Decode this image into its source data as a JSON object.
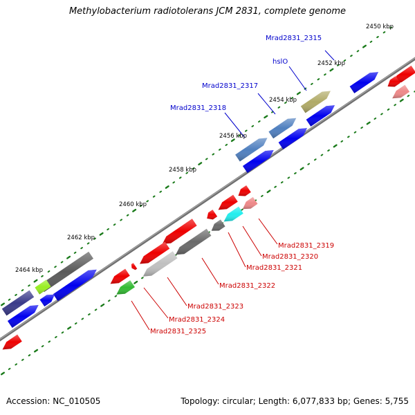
{
  "title": "Methylobacterium radiotolerans JCM 2831, complete genome",
  "footer": {
    "accession": "Accession: NC_010505",
    "topology": "Topology: circular; Length: 6,077,833 bp; Genes: 5,755"
  },
  "ruler": {
    "ticks": [
      "2450 kbp",
      "2452 kbp",
      "2454 kbp",
      "2456 kbp",
      "2458 kbp",
      "2460 kbp",
      "2462 kbp",
      "2464 kbp"
    ]
  },
  "gene_labels_top": [
    "Mrad2831_2315",
    "hslO",
    "Mrad2831_2317",
    "Mrad2831_2318"
  ],
  "gene_labels_bottom": [
    "Mrad2831_2319",
    "Mrad2831_2320",
    "Mrad2831_2321",
    "Mrad2831_2322",
    "Mrad2831_2323",
    "Mrad2831_2324",
    "Mrad2831_2325"
  ],
  "colors": {
    "backbone": "#808080",
    "forward_gene": "#0000ee",
    "reverse_gene": "#ee0000",
    "label_top": "#0000cc",
    "label_bottom": "#cc0000",
    "tick": "#1a7a1a"
  }
}
